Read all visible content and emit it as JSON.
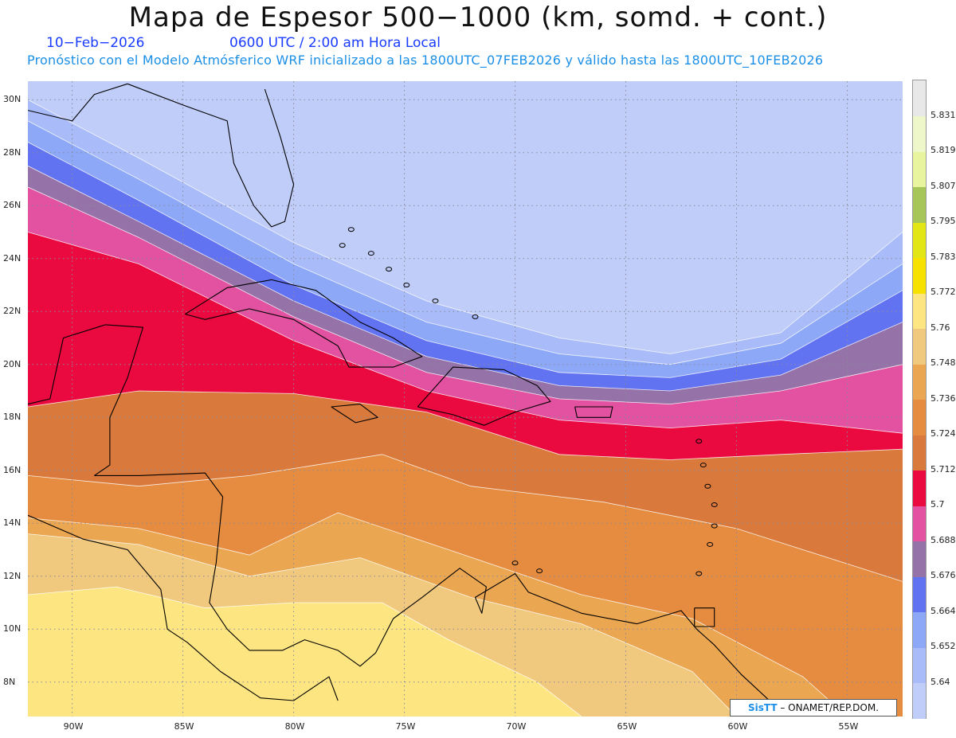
{
  "title": "Mapa de Espesor 500−1000 (km, somd. + cont.)",
  "date_text": "10−Feb−2026",
  "time_text": "0600 UTC / 2:00 am Hora Local",
  "forecast_text": "Pronóstico con el Modelo Atmósferico WRF inicializado a las 1800UTC_07FEB2026 y válido hasta las  1800UTC_10FEB2026",
  "credit": {
    "brand": "SisTT",
    "org": "– ONAMET/REP.DOM."
  },
  "lat_labels": [
    "30N",
    "28N",
    "26N",
    "24N",
    "22N",
    "20N",
    "18N",
    "16N",
    "14N",
    "12N",
    "10N",
    "8N"
  ],
  "lon_labels": [
    "90W",
    "85W",
    "80W",
    "75W",
    "70W",
    "65W",
    "60W",
    "55W"
  ],
  "legend": {
    "values": [
      "5.64",
      "5.652",
      "5.664",
      "5.676",
      "5.688",
      "5.7",
      "5.712",
      "5.724",
      "5.736",
      "5.748",
      "5.76",
      "5.772",
      "5.783",
      "5.795",
      "5.807",
      "5.819",
      "5.831"
    ],
    "colors": [
      "#c0cdf8",
      "#a9bcf9",
      "#8da8f7",
      "#6273f2",
      "#9572a8",
      "#e252a0",
      "#eb0a40",
      "#d97a3c",
      "#e68c40",
      "#eba652",
      "#f0c97e",
      "#fde681",
      "#f7e100",
      "#e3e615",
      "#a6c65a",
      "#e9f49e",
      "#eef7c9",
      "#e8e8e8"
    ]
  },
  "chart_data": {
    "type": "heatmap",
    "variable": "Espesor 500−1000",
    "units": "km",
    "lon_range": [
      -92,
      -52.5
    ],
    "lat_range": [
      6.7,
      30.7
    ],
    "contour_levels": [
      5.64,
      5.652,
      5.664,
      5.676,
      5.688,
      5.7,
      5.712,
      5.724,
      5.736,
      5.748,
      5.76,
      5.772,
      5.783,
      5.795,
      5.807,
      5.819,
      5.831
    ],
    "band_lower_boundaries": [
      {
        "level": 5.652,
        "points": [
          [
            -92,
            30
          ],
          [
            -87,
            27.8
          ],
          [
            -80,
            24.6
          ],
          [
            -74,
            22.4
          ],
          [
            -68,
            21.0
          ],
          [
            -63,
            20.4
          ],
          [
            -58,
            21.2
          ],
          [
            -52.5,
            25.0
          ]
        ]
      },
      {
        "level": 5.664,
        "points": [
          [
            -92,
            29.2
          ],
          [
            -87,
            27.0
          ],
          [
            -80,
            23.8
          ],
          [
            -74,
            21.6
          ],
          [
            -68,
            20.4
          ],
          [
            -63,
            20.0
          ],
          [
            -58,
            20.8
          ],
          [
            -52.5,
            23.8
          ]
        ]
      },
      {
        "level": 5.676,
        "points": [
          [
            -92,
            28.4
          ],
          [
            -87,
            26.2
          ],
          [
            -80,
            23.0
          ],
          [
            -74,
            20.9
          ],
          [
            -68,
            19.7
          ],
          [
            -63,
            19.5
          ],
          [
            -58,
            20.2
          ],
          [
            -52.5,
            22.8
          ]
        ]
      },
      {
        "level": 5.688,
        "points": [
          [
            -92,
            27.5
          ],
          [
            -87,
            25.4
          ],
          [
            -80,
            22.4
          ],
          [
            -74,
            20.3
          ],
          [
            -68,
            19.2
          ],
          [
            -63,
            19.0
          ],
          [
            -58,
            19.6
          ],
          [
            -52.5,
            21.6
          ]
        ]
      },
      {
        "level": 5.7,
        "points": [
          [
            -92,
            26.7
          ],
          [
            -87,
            24.8
          ],
          [
            -80,
            21.8
          ],
          [
            -74,
            19.7
          ],
          [
            -68,
            18.7
          ],
          [
            -63,
            18.5
          ],
          [
            -58,
            19.0
          ],
          [
            -52.5,
            20.0
          ]
        ]
      },
      {
        "level": 5.712,
        "points": [
          [
            -92,
            25.0
          ],
          [
            -87,
            23.8
          ],
          [
            -80,
            20.9
          ],
          [
            -74,
            19.0
          ],
          [
            -68,
            17.9
          ],
          [
            -63,
            17.6
          ],
          [
            -58,
            17.9
          ],
          [
            -52.5,
            17.4
          ]
        ]
      },
      {
        "level": 5.724,
        "points": [
          [
            -92,
            18.4
          ],
          [
            -87,
            19.0
          ],
          [
            -80,
            18.9
          ],
          [
            -74,
            18.2
          ],
          [
            -68,
            16.6
          ],
          [
            -63,
            16.4
          ],
          [
            -58,
            16.6
          ],
          [
            -52.5,
            16.8
          ]
        ]
      },
      {
        "level": 5.736,
        "points": [
          [
            -92,
            15.8
          ],
          [
            -87,
            15.4
          ],
          [
            -82,
            15.8
          ],
          [
            -76,
            16.6
          ],
          [
            -72,
            15.4
          ],
          [
            -66,
            14.8
          ],
          [
            -60,
            13.8
          ],
          [
            -52.5,
            11.8
          ]
        ]
      },
      {
        "level": 5.748,
        "points": [
          [
            -92,
            14.2
          ],
          [
            -87,
            13.8
          ],
          [
            -82,
            12.8
          ],
          [
            -78,
            14.4
          ],
          [
            -73,
            13.0
          ],
          [
            -67,
            11.3
          ],
          [
            -62,
            10.4
          ],
          [
            -57,
            8.2
          ],
          [
            -55,
            6.7
          ]
        ]
      },
      {
        "level": 5.76,
        "points": [
          [
            -92,
            13.6
          ],
          [
            -87,
            13.2
          ],
          [
            -82,
            12.0
          ],
          [
            -77,
            12.7
          ],
          [
            -72,
            11.2
          ],
          [
            -67,
            10.2
          ],
          [
            -62,
            8.4
          ],
          [
            -60,
            6.7
          ]
        ]
      },
      {
        "level": 5.772,
        "points": [
          [
            -92,
            11.3
          ],
          [
            -88,
            11.6
          ],
          [
            -84,
            10.8
          ],
          [
            -80,
            11.0
          ],
          [
            -76,
            11.0
          ],
          [
            -73,
            9.6
          ],
          [
            -69,
            8.0
          ],
          [
            -67,
            6.7
          ]
        ]
      }
    ]
  }
}
